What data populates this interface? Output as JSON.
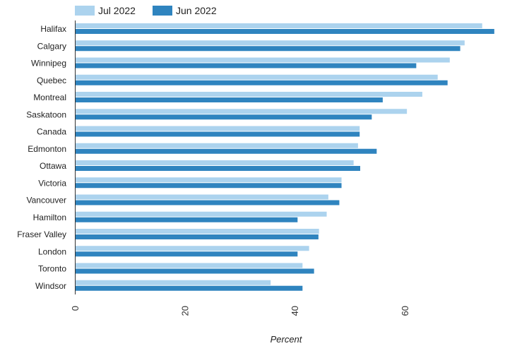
{
  "chart_data": {
    "type": "bar",
    "orientation": "horizontal",
    "categories": [
      "Halifax",
      "Calgary",
      "Winnipeg",
      "Quebec",
      "Montreal",
      "Saskatoon",
      "Canada",
      "Edmonton",
      "Ottawa",
      "Victoria",
      "Vancouver",
      "Hamilton",
      "Fraser Valley",
      "London",
      "Toronto",
      "Windsor"
    ],
    "series": [
      {
        "name": "Jul 2022",
        "color": "#acd3ee",
        "values": [
          74.0,
          70.8,
          68.1,
          65.9,
          63.1,
          60.3,
          51.7,
          51.4,
          50.6,
          48.4,
          46.0,
          45.7,
          44.3,
          42.5,
          41.3,
          35.5
        ]
      },
      {
        "name": "Jun 2022",
        "color": "#2f84bf",
        "values": [
          76.2,
          70.0,
          62.0,
          67.7,
          55.9,
          53.9,
          51.7,
          54.8,
          51.8,
          48.4,
          48.0,
          40.4,
          44.2,
          40.4,
          43.4,
          41.3
        ]
      }
    ],
    "xlabel": "Percent",
    "ylabel": "",
    "xlim": [
      0,
      78
    ],
    "xticks": [
      0,
      20,
      40,
      60
    ],
    "grid": false,
    "legend_position": "top-left"
  }
}
